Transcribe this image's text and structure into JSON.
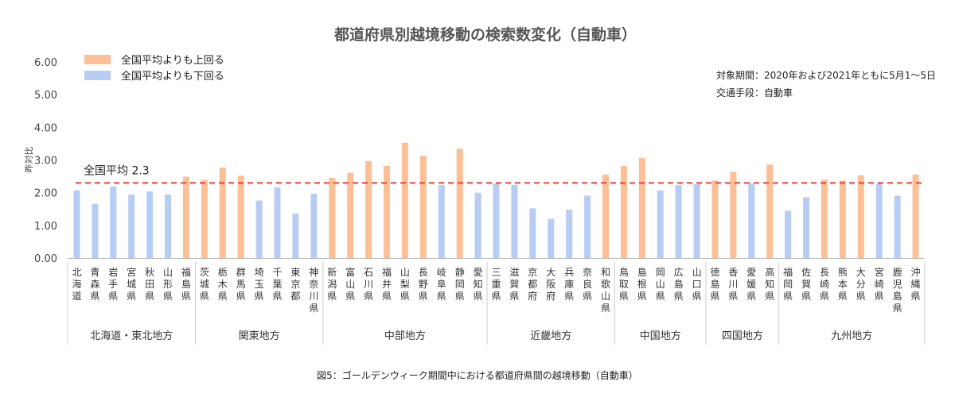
{
  "chart_data": {
    "type": "bar",
    "title": "都道府県別越境移動の検索数変化（自動車）",
    "ylabel": "昨対比",
    "ylim": [
      0,
      6
    ],
    "yticks": [
      "0.00",
      "1.00",
      "2.00",
      "3.00",
      "4.00",
      "5.00",
      "6.00"
    ],
    "grid": false,
    "legend_position": "top-left",
    "legend": {
      "above": "全国平均よりも上回る",
      "below": "全国平均よりも下回る"
    },
    "colors": {
      "above": "#fdbf96",
      "below": "#b7cdf4",
      "average_line": "#e8403a"
    },
    "average": {
      "label": "全国平均",
      "value": 2.3
    },
    "notes": [
      "対象期間：2020年および2021年ともに5月1～5日",
      "交通手段：自動車"
    ],
    "caption": "図5：ゴールデンウィーク期間中における都道府県間の越境移動（自動車）",
    "categories": [
      "北海道",
      "青森県",
      "岩手県",
      "宮城県",
      "秋田県",
      "山形県",
      "福島県",
      "茨城県",
      "栃木県",
      "群馬県",
      "埼玉県",
      "千葉県",
      "東京都",
      "神奈川県",
      "新潟県",
      "富山県",
      "石川県",
      "福井県",
      "山梨県",
      "長野県",
      "岐阜県",
      "静岡県",
      "愛知県",
      "三重県",
      "滋賀県",
      "京都府",
      "大阪府",
      "兵庫県",
      "奈良県",
      "和歌山県",
      "鳥取県",
      "島根県",
      "岡山県",
      "広島県",
      "山口県",
      "徳島県",
      "香川県",
      "愛媛県",
      "高知県",
      "福岡県",
      "佐賀県",
      "長崎県",
      "熊本県",
      "大分県",
      "宮崎県",
      "鹿児島県",
      "沖縄県"
    ],
    "values": [
      2.07,
      1.66,
      2.19,
      1.94,
      2.04,
      1.94,
      2.49,
      2.39,
      2.77,
      2.52,
      1.76,
      2.16,
      1.36,
      1.97,
      2.45,
      2.61,
      2.97,
      2.82,
      3.53,
      3.13,
      2.23,
      3.34,
      2.0,
      2.28,
      2.24,
      1.52,
      1.2,
      1.48,
      1.91,
      2.55,
      2.82,
      3.06,
      2.07,
      2.23,
      2.26,
      2.37,
      2.64,
      2.28,
      2.86,
      1.45,
      1.86,
      2.4,
      2.37,
      2.53,
      2.28,
      1.91,
      2.55
    ],
    "regions": [
      {
        "name": "北海道・東北地方",
        "count": 7
      },
      {
        "name": "関東地方",
        "count": 7
      },
      {
        "name": "中部地方",
        "count": 9
      },
      {
        "name": "近畿地方",
        "count": 7
      },
      {
        "name": "中国地方",
        "count": 5
      },
      {
        "name": "四国地方",
        "count": 4
      },
      {
        "name": "九州地方",
        "count": 8
      }
    ]
  }
}
